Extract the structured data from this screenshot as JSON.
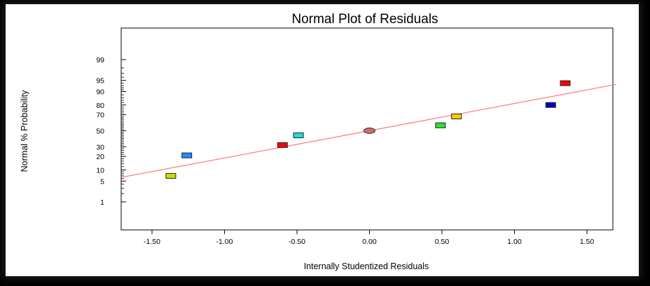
{
  "chart_data": {
    "type": "scatter",
    "title": "Normal Plot of Residuals",
    "xlabel": "Internally Studentized Residuals",
    "ylabel": "Normal % Probability",
    "xlim": [
      -1.7,
      1.7
    ],
    "x_ticks": [
      {
        "value": -1.5,
        "label": "-1.50"
      },
      {
        "value": -1.0,
        "label": "-1.00"
      },
      {
        "value": -0.5,
        "label": "-0.50"
      },
      {
        "value": 0.0,
        "label": "0.00"
      },
      {
        "value": 0.5,
        "label": "0.50"
      },
      {
        "value": 1.0,
        "label": "1.00"
      },
      {
        "value": 1.5,
        "label": "1.50"
      }
    ],
    "y_ticks": [
      {
        "value": 1,
        "label": "1"
      },
      {
        "value": 5,
        "label": "5"
      },
      {
        "value": 10,
        "label": "10"
      },
      {
        "value": 20,
        "label": "20"
      },
      {
        "value": 30,
        "label": "30"
      },
      {
        "value": 50,
        "label": "50"
      },
      {
        "value": 70,
        "label": "70"
      },
      {
        "value": 80,
        "label": "80"
      },
      {
        "value": 90,
        "label": "90"
      },
      {
        "value": 95,
        "label": "95"
      },
      {
        "value": 99,
        "label": "99"
      }
    ],
    "points": [
      {
        "x": -1.37,
        "y": 7,
        "color": "#ccdd00",
        "shape": "square"
      },
      {
        "x": -1.26,
        "y": 21,
        "color": "#1e90ff",
        "shape": "square"
      },
      {
        "x": -0.6,
        "y": 32,
        "color": "#ff0000",
        "shape": "square"
      },
      {
        "x": -0.49,
        "y": 44,
        "color": "#20e0d0",
        "shape": "square"
      },
      {
        "x": 0.0,
        "y": 50,
        "color": "#d06a6a",
        "shape": "ellipse"
      },
      {
        "x": 0.49,
        "y": 57,
        "color": "#33dd33",
        "shape": "square"
      },
      {
        "x": 0.6,
        "y": 68,
        "color": "#ffcc00",
        "shape": "square"
      },
      {
        "x": 1.25,
        "y": 80,
        "color": "#0000cc",
        "shape": "square"
      },
      {
        "x": 1.35,
        "y": 94,
        "color": "#ff0000",
        "shape": "square"
      }
    ],
    "fit_line": {
      "x": [
        -1.7,
        1.7
      ],
      "y": [
        6.5,
        93.5
      ],
      "color": "#ff7777"
    },
    "grid": false
  }
}
